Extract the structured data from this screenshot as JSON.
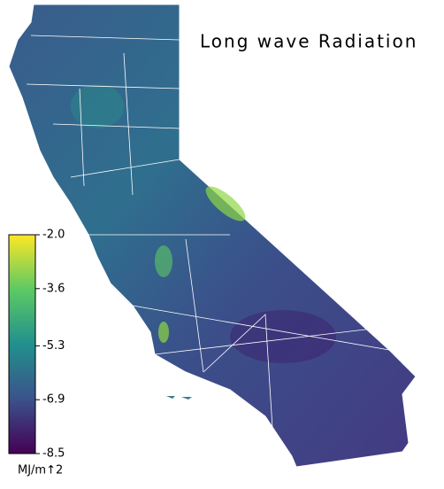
{
  "title": "Long wave Radiation",
  "colorbar": {
    "unit": "MJ/m↑2",
    "range": [
      -8.5,
      -2
    ],
    "ticks": [
      {
        "value": -2,
        "label": "-2.0"
      },
      -3.6,
      -5.3,
      -6.9,
      -8.5
    ],
    "colors": [
      "#440154",
      "#3b528b",
      "#21908d",
      "#5dc963",
      "#fde725"
    ]
  }
}
